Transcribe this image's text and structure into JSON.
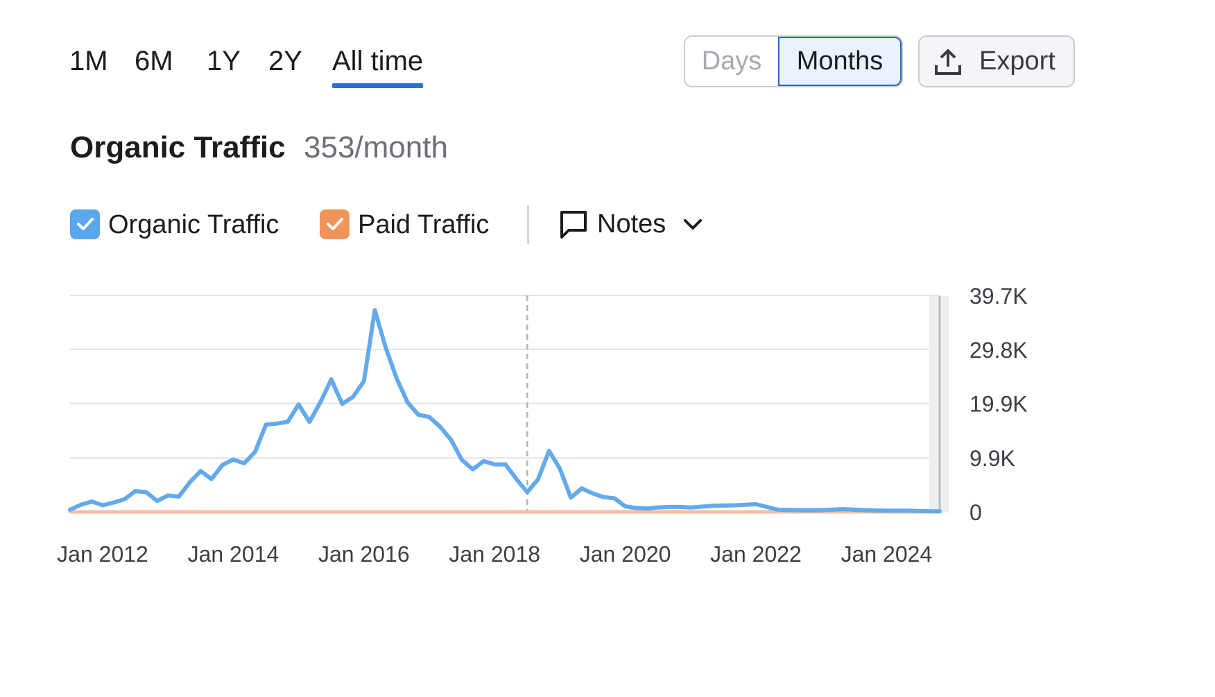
{
  "range_tabs": [
    {
      "label": "1M",
      "active": false
    },
    {
      "label": "6M",
      "active": false
    },
    {
      "label": "1Y",
      "active": false
    },
    {
      "label": "2Y",
      "active": false
    },
    {
      "label": "All time",
      "active": true
    }
  ],
  "granularity": {
    "days_label": "Days",
    "months_label": "Months",
    "selected": "Months"
  },
  "export": {
    "label": "Export",
    "icon": "upload-icon"
  },
  "metric": {
    "title": "Organic Traffic",
    "value": "353/month"
  },
  "legend": {
    "organic": {
      "label": "Organic Traffic",
      "checked": true,
      "color": "#5aa7ef"
    },
    "paid": {
      "label": "Paid Traffic",
      "checked": true,
      "color": "#f0955a"
    },
    "notes": {
      "label": "Notes",
      "icon": "comment-icon"
    }
  },
  "colors": {
    "accent": "#2f6fd0",
    "organic_line": "#64a9ec",
    "paid_line": "#f3c0a3",
    "grid": "#e2e3e7"
  },
  "chart_data": {
    "type": "line",
    "ylim": [
      0,
      39700
    ],
    "y_ticks": [
      {
        "value": 0,
        "label": "0"
      },
      {
        "value": 9900,
        "label": "9.9K"
      },
      {
        "value": 19900,
        "label": "19.9K"
      },
      {
        "value": 29800,
        "label": "29.8K"
      },
      {
        "value": 39700,
        "label": "39.7K"
      }
    ],
    "x_ticks": [
      "Jan 2012",
      "Jan 2014",
      "Jan 2016",
      "Jan 2018",
      "Jan 2020",
      "Jan 2022",
      "Jan 2024"
    ],
    "x_range": [
      "2011-07",
      "2024-12"
    ],
    "marker_date": "2018-07",
    "series": [
      {
        "name": "Organic Traffic",
        "color": "#64a9ec",
        "x": [
          "2011-07",
          "2011-09",
          "2011-11",
          "2012-01",
          "2012-03",
          "2012-05",
          "2012-07",
          "2012-09",
          "2012-11",
          "2013-01",
          "2013-03",
          "2013-05",
          "2013-07",
          "2013-09",
          "2013-11",
          "2014-01",
          "2014-03",
          "2014-05",
          "2014-07",
          "2014-09",
          "2014-11",
          "2015-01",
          "2015-03",
          "2015-05",
          "2015-07",
          "2015-09",
          "2015-11",
          "2016-01",
          "2016-03",
          "2016-05",
          "2016-07",
          "2016-09",
          "2016-11",
          "2017-01",
          "2017-03",
          "2017-05",
          "2017-07",
          "2017-09",
          "2017-11",
          "2018-01",
          "2018-03",
          "2018-05",
          "2018-07",
          "2018-09",
          "2018-11",
          "2019-01",
          "2019-03",
          "2019-05",
          "2019-07",
          "2019-09",
          "2019-11",
          "2020-01",
          "2020-03",
          "2020-05",
          "2020-07",
          "2020-09",
          "2020-11",
          "2021-01",
          "2021-05",
          "2021-09",
          "2022-01",
          "2022-05",
          "2022-09",
          "2023-01",
          "2023-05",
          "2023-09",
          "2024-01",
          "2024-05",
          "2024-09",
          "2024-12"
        ],
        "values": [
          400,
          1300,
          1900,
          1200,
          1700,
          2300,
          3800,
          3600,
          2000,
          3000,
          2800,
          5400,
          7500,
          6000,
          8600,
          9600,
          8900,
          11000,
          16000,
          16200,
          16500,
          19700,
          16500,
          20100,
          24300,
          19800,
          21100,
          24000,
          37000,
          30100,
          24500,
          20100,
          17800,
          17400,
          15600,
          13200,
          9500,
          7800,
          9300,
          8700,
          8700,
          6000,
          3600,
          6000,
          11200,
          7900,
          2600,
          4300,
          3400,
          2700,
          2500,
          1000,
          700,
          600,
          800,
          900,
          900,
          800,
          1100,
          1200,
          1400,
          400,
          300,
          300,
          500,
          300,
          200,
          200,
          100,
          100
        ]
      },
      {
        "name": "Paid Traffic",
        "color": "#f3c0a3",
        "x": [
          "2011-07",
          "2024-12"
        ],
        "values": [
          0,
          0
        ]
      }
    ]
  }
}
